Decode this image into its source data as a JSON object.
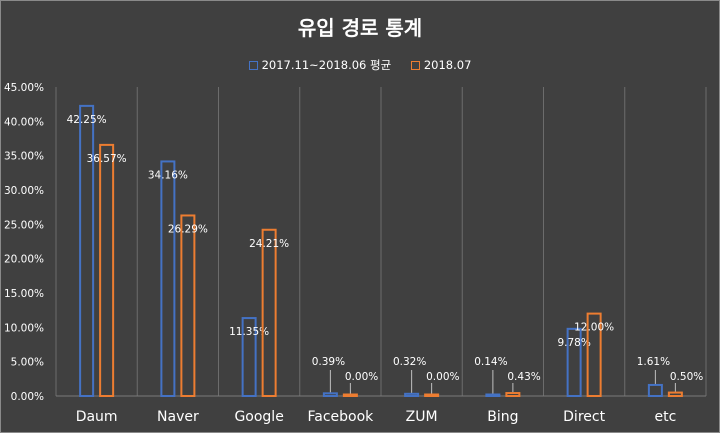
{
  "chart_data": {
    "type": "bar",
    "title": "유입 경로 통계",
    "categories": [
      "Daum",
      "Naver",
      "Google",
      "Facebook",
      "ZUM",
      "Bing",
      "Direct",
      "etc"
    ],
    "series": [
      {
        "name": "2017.11~2018.06 평균",
        "color": "#4472c4",
        "values": [
          42.25,
          34.16,
          11.35,
          0.39,
          0.32,
          0.14,
          9.78,
          1.61
        ],
        "labels": [
          "42.25%",
          "34.16%",
          "11.35%",
          "0.39%",
          "0.32%",
          "0.14%",
          "9.78%",
          "1.61%"
        ]
      },
      {
        "name": "2018.07",
        "color": "#ed7d31",
        "values": [
          36.57,
          26.29,
          24.21,
          0.0,
          0.0,
          0.43,
          12.0,
          0.5
        ],
        "labels": [
          "36.57%",
          "26.29%",
          "24.21%",
          "0.00%",
          "0.00%",
          "0.43%",
          "12.00%",
          "0.50%"
        ]
      }
    ],
    "ylim": [
      0,
      45
    ],
    "ytick_labels": [
      "0.00%",
      "5.00%",
      "10.00%",
      "15.00%",
      "20.00%",
      "25.00%",
      "30.00%",
      "35.00%",
      "40.00%",
      "45.00%"
    ],
    "legend_position": "top",
    "grid": "vertical category separators",
    "bar_style": "outline",
    "background": "#404040"
  }
}
